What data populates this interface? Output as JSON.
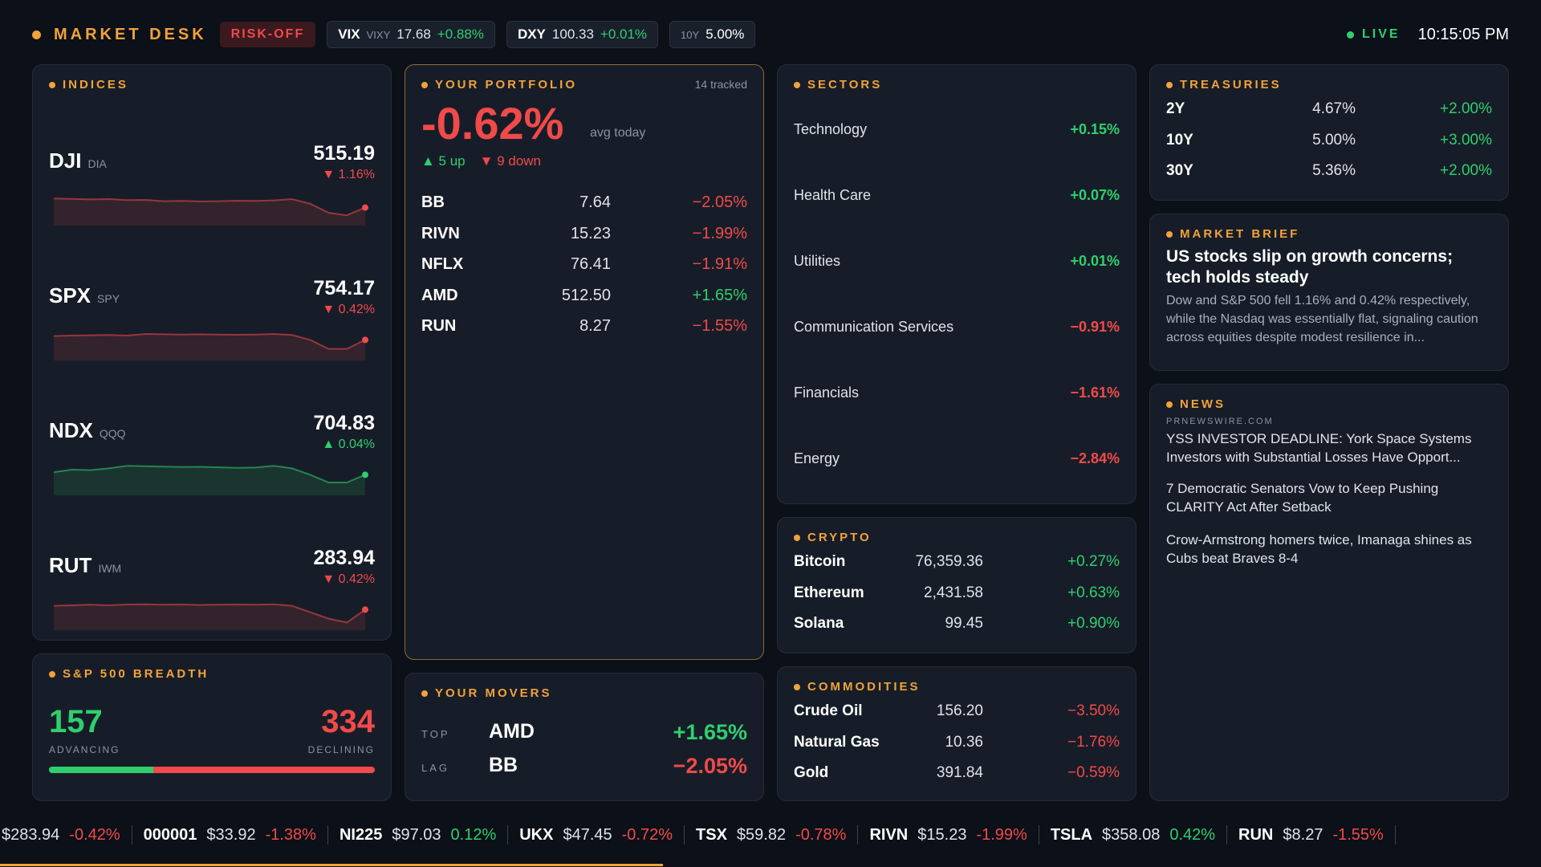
{
  "header": {
    "brand": "MARKET DESK",
    "risk_badge": "RISK-OFF",
    "pills": [
      {
        "sym": "VIX",
        "sub": "VIXY",
        "val": "17.68",
        "chg": "+0.88%",
        "dir": "up"
      },
      {
        "sym": "DXY",
        "sub": "",
        "val": "100.33",
        "chg": "+0.01%",
        "dir": "up"
      },
      {
        "sym": "",
        "sub": "10Y",
        "val": "5.00%",
        "chg": "",
        "dir": ""
      }
    ],
    "live_label": "LIVE",
    "clock": "10:15:05 PM"
  },
  "indices": {
    "title": "INDICES",
    "items": [
      {
        "name": "DJI",
        "etf": "DIA",
        "price": "515.19",
        "chg": "▼ 1.16%",
        "dir": "dn",
        "spark": [
          0.2,
          0.21,
          0.23,
          0.22,
          0.26,
          0.25,
          0.3,
          0.29,
          0.31,
          0.3,
          0.28,
          0.29,
          0.27,
          0.22,
          0.4,
          0.75,
          0.85,
          0.55
        ]
      },
      {
        "name": "SPX",
        "etf": "SPY",
        "price": "754.17",
        "chg": "▼ 0.42%",
        "dir": "dn",
        "spark": [
          0.3,
          0.28,
          0.27,
          0.26,
          0.28,
          0.22,
          0.23,
          0.24,
          0.23,
          0.24,
          0.25,
          0.24,
          0.22,
          0.26,
          0.45,
          0.8,
          0.8,
          0.45
        ]
      },
      {
        "name": "NDX",
        "etf": "QQQ",
        "price": "704.83",
        "chg": "▲ 0.04%",
        "dir": "up",
        "spark": [
          0.35,
          0.25,
          0.27,
          0.2,
          0.1,
          0.12,
          0.13,
          0.15,
          0.14,
          0.16,
          0.18,
          0.17,
          0.1,
          0.2,
          0.45,
          0.75,
          0.75,
          0.45
        ]
      },
      {
        "name": "RUT",
        "etf": "IWM",
        "price": "283.94",
        "chg": "▼ 0.42%",
        "dir": "dn",
        "spark": [
          0.3,
          0.28,
          0.26,
          0.28,
          0.25,
          0.24,
          0.26,
          0.25,
          0.27,
          0.26,
          0.25,
          0.26,
          0.24,
          0.3,
          0.55,
          0.8,
          0.95,
          0.45
        ]
      }
    ]
  },
  "breadth": {
    "title": "S&P 500 BREADTH",
    "advancing": "157",
    "declining": "334",
    "adv_label": "ADVANCING",
    "dec_label": "DECLINING",
    "adv_fraction": 0.32
  },
  "portfolio": {
    "title": "YOUR PORTFOLIO",
    "tracked": "14 tracked",
    "avg": "-0.62%",
    "avg_label": "avg today",
    "up": "▲ 5 up",
    "down": "▼ 9 down",
    "holdings": [
      {
        "sym": "BB",
        "price": "7.64",
        "chg": "−2.05%",
        "dir": "dn"
      },
      {
        "sym": "RIVN",
        "price": "15.23",
        "chg": "−1.99%",
        "dir": "dn"
      },
      {
        "sym": "NFLX",
        "price": "76.41",
        "chg": "−1.91%",
        "dir": "dn"
      },
      {
        "sym": "AMD",
        "price": "512.50",
        "chg": "+1.65%",
        "dir": "up"
      },
      {
        "sym": "RUN",
        "price": "8.27",
        "chg": "−1.55%",
        "dir": "dn"
      }
    ]
  },
  "movers": {
    "title": "YOUR MOVERS",
    "top_label": "TOP",
    "top_sym": "AMD",
    "top_chg": "+1.65%",
    "lag_label": "LAG",
    "lag_sym": "BB",
    "lag_chg": "−2.05%"
  },
  "sectors": {
    "title": "SECTORS",
    "items": [
      {
        "name": "Technology",
        "chg": "+0.15%",
        "dir": "up"
      },
      {
        "name": "Health Care",
        "chg": "+0.07%",
        "dir": "up"
      },
      {
        "name": "Utilities",
        "chg": "+0.01%",
        "dir": "up"
      },
      {
        "name": "Communication Services",
        "chg": "−0.91%",
        "dir": "dn"
      },
      {
        "name": "Financials",
        "chg": "−1.61%",
        "dir": "dn"
      },
      {
        "name": "Energy",
        "chg": "−2.84%",
        "dir": "dn"
      }
    ]
  },
  "crypto": {
    "title": "CRYPTO",
    "items": [
      {
        "name": "Bitcoin",
        "price": "76,359.36",
        "chg": "+0.27%",
        "dir": "up"
      },
      {
        "name": "Ethereum",
        "price": "2,431.58",
        "chg": "+0.63%",
        "dir": "up"
      },
      {
        "name": "Solana",
        "price": "99.45",
        "chg": "+0.90%",
        "dir": "up"
      }
    ]
  },
  "commodities": {
    "title": "COMMODITIES",
    "items": [
      {
        "name": "Crude Oil",
        "price": "156.20",
        "chg": "−3.50%",
        "dir": "dn"
      },
      {
        "name": "Natural Gas",
        "price": "10.36",
        "chg": "−1.76%",
        "dir": "dn"
      },
      {
        "name": "Gold",
        "price": "391.84",
        "chg": "−0.59%",
        "dir": "dn"
      }
    ]
  },
  "treasuries": {
    "title": "TREASURIES",
    "items": [
      {
        "name": "2Y",
        "yield": "4.67%",
        "chg": "+2.00%",
        "dir": "up"
      },
      {
        "name": "10Y",
        "yield": "5.00%",
        "chg": "+3.00%",
        "dir": "up"
      },
      {
        "name": "30Y",
        "yield": "5.36%",
        "chg": "+2.00%",
        "dir": "up"
      }
    ]
  },
  "brief": {
    "title": "MARKET BRIEF",
    "headline": "US stocks slip on growth concerns; tech holds steady",
    "body": "Dow and S&P 500 fell 1.16% and 0.42% respectively, while the Nasdaq was essentially flat, signaling caution across equities despite modest resilience in..."
  },
  "news": {
    "title": "NEWS",
    "source": "PRNEWSWIRE.COM",
    "items": [
      "YSS INVESTOR DEADLINE: York Space Systems Investors with Substantial Losses Have Opport...",
      "7 Democratic Senators Vow to Keep Pushing CLARITY Act After Setback",
      "Crow-Armstrong homers twice, Imanaga shines as Cubs beat Braves 8-4"
    ]
  },
  "ticker": [
    {
      "sym": "",
      "price": "$283.94",
      "chg": "-0.42%",
      "dir": "dn"
    },
    {
      "sym": "000001",
      "price": "$33.92",
      "chg": "-1.38%",
      "dir": "dn"
    },
    {
      "sym": "NI225",
      "price": "$97.03",
      "chg": "0.12%",
      "dir": "up"
    },
    {
      "sym": "UKX",
      "price": "$47.45",
      "chg": "-0.72%",
      "dir": "dn"
    },
    {
      "sym": "TSX",
      "price": "$59.82",
      "chg": "-0.78%",
      "dir": "dn"
    },
    {
      "sym": "RIVN",
      "price": "$15.23",
      "chg": "-1.99%",
      "dir": "dn"
    },
    {
      "sym": "TSLA",
      "price": "$358.08",
      "chg": "0.42%",
      "dir": "up"
    },
    {
      "sym": "RUN",
      "price": "$8.27",
      "chg": "-1.55%",
      "dir": "dn"
    }
  ],
  "ticker_progress": 0.43,
  "colors": {
    "up": "#2fcf6e",
    "down": "#f04a4a",
    "accent": "#f2a23a"
  }
}
